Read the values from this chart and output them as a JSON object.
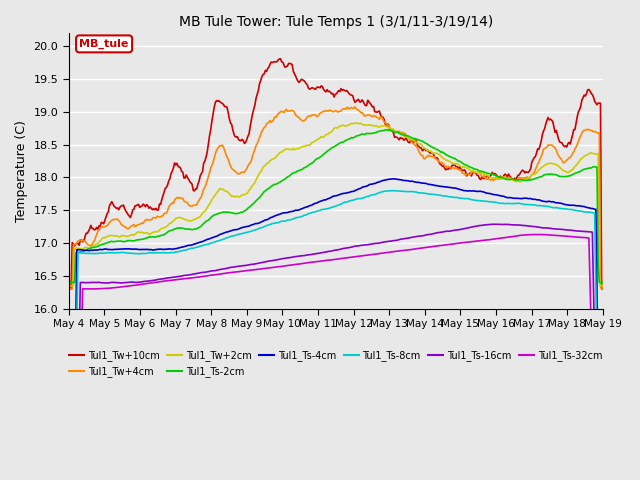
{
  "title": "MB Tule Tower: Tule Temps 1 (3/1/11-3/19/14)",
  "ylabel": "Temperature (C)",
  "ylim": [
    16.0,
    20.2
  ],
  "yticks": [
    16.0,
    16.5,
    17.0,
    17.5,
    18.0,
    18.5,
    19.0,
    19.5,
    20.0
  ],
  "background_color": "#e8e8e8",
  "series": [
    {
      "label": "Tul1_Tw+10cm",
      "color": "#cc0000"
    },
    {
      "label": "Tul1_Tw+4cm",
      "color": "#ff8800"
    },
    {
      "label": "Tul1_Tw+2cm",
      "color": "#cccc00"
    },
    {
      "label": "Tul1_Ts-2cm",
      "color": "#00cc00"
    },
    {
      "label": "Tul1_Ts-4cm",
      "color": "#0000cc"
    },
    {
      "label": "Tul1_Ts-8cm",
      "color": "#00cccc"
    },
    {
      "label": "Tul1_Ts-16cm",
      "color": "#8800cc"
    },
    {
      "label": "Tul1_Ts-32cm",
      "color": "#cc00cc"
    }
  ],
  "n_points": 460,
  "xtick_labels": [
    "May 4",
    "May 5",
    "May 6",
    "May 7",
    "May 8",
    "May 9",
    "May 10",
    "May 11",
    "May 12",
    "May 13",
    "May 14",
    "May 15",
    "May 16",
    "May 17",
    "May 18",
    "May 19"
  ]
}
